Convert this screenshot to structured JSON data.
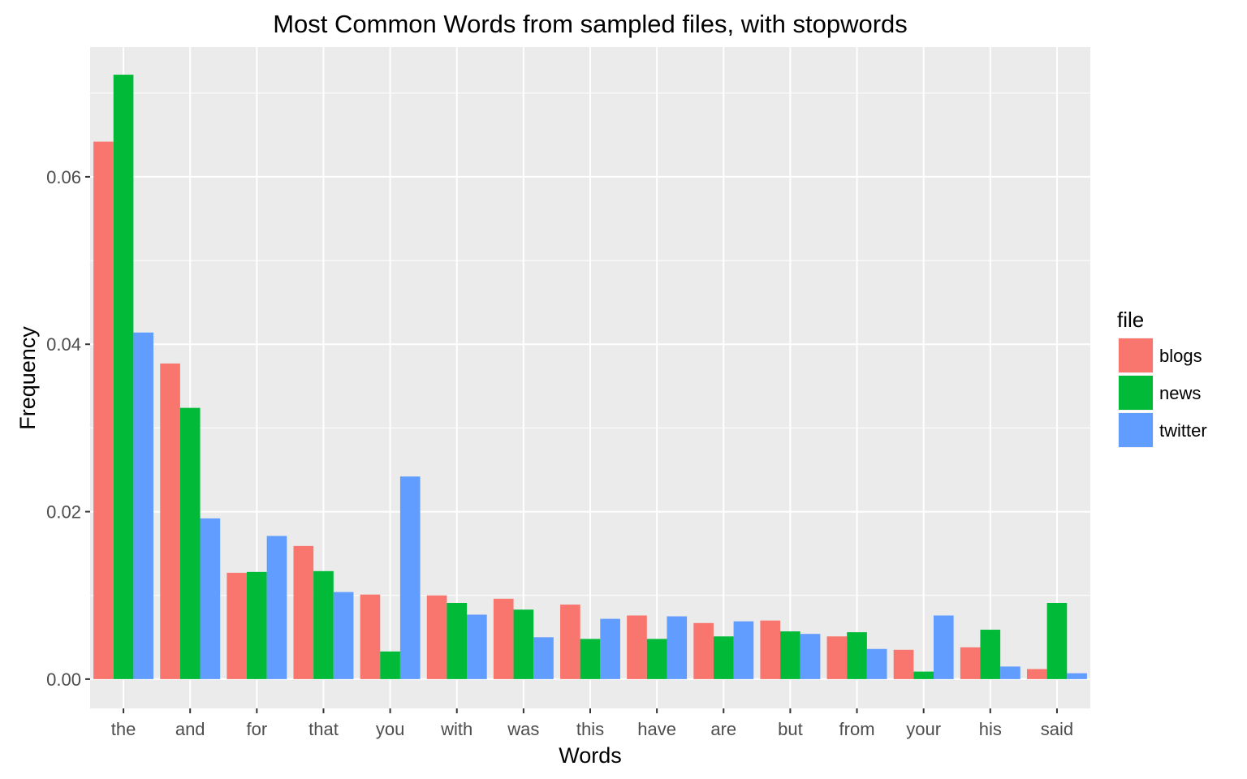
{
  "chart_data": {
    "type": "bar",
    "title": "Most Common Words from sampled files, with stopwords",
    "xlabel": "Words",
    "ylabel": "Frequency",
    "ylim": [
      -0.0035,
      0.0755
    ],
    "yticks": [
      "0.00",
      "0.02",
      "0.04",
      "0.06"
    ],
    "ytick_values": [
      0,
      0.02,
      0.04,
      0.06
    ],
    "grid": true,
    "legend": {
      "title": "file",
      "placement": "right"
    },
    "categories": [
      "the",
      "and",
      "for",
      "that",
      "you",
      "with",
      "was",
      "this",
      "have",
      "are",
      "but",
      "from",
      "your",
      "his",
      "said"
    ],
    "series": [
      {
        "name": "blogs",
        "color": "#F8766D",
        "values": [
          0.0642,
          0.0377,
          0.0127,
          0.0159,
          0.0101,
          0.01,
          0.0096,
          0.0089,
          0.0076,
          0.0067,
          0.007,
          0.0051,
          0.0035,
          0.0038,
          0.0012
        ]
      },
      {
        "name": "news",
        "color": "#00BA38",
        "values": [
          0.0722,
          0.0324,
          0.0128,
          0.0129,
          0.0033,
          0.0091,
          0.0083,
          0.0048,
          0.0048,
          0.0051,
          0.0057,
          0.0056,
          0.0009,
          0.0059,
          0.0091
        ]
      },
      {
        "name": "twitter",
        "color": "#619CFF",
        "values": [
          0.0414,
          0.0192,
          0.0171,
          0.0104,
          0.0242,
          0.0077,
          0.005,
          0.0072,
          0.0075,
          0.0069,
          0.0054,
          0.0036,
          0.0076,
          0.0015,
          0.0007
        ]
      }
    ]
  }
}
